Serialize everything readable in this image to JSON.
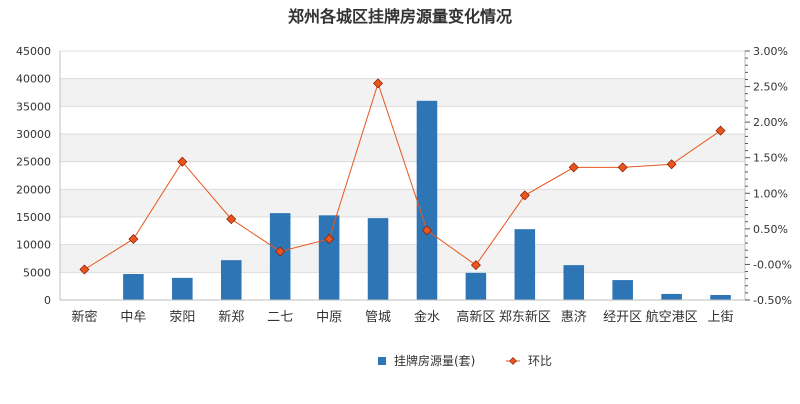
{
  "chart_data": {
    "type": "bar",
    "title": "郑州各城区挂牌房源量变化情况",
    "categories": [
      "新密",
      "中牟",
      "荥阳",
      "新郑",
      "二七",
      "中原",
      "管城",
      "金水",
      "高新区",
      "郑东新区",
      "惠济",
      "经开区",
      "航空港区",
      "上街"
    ],
    "series": [
      {
        "name": "挂牌房源量(套)",
        "type": "bar",
        "axis": "left",
        "color": "#2e75b6",
        "values": [
          0,
          4700,
          4000,
          7200,
          15700,
          15300,
          14800,
          36000,
          4900,
          12800,
          6300,
          3600,
          1100,
          900
        ]
      },
      {
        "name": "环比",
        "type": "line",
        "axis": "right",
        "color": "#e8561f",
        "marker_fill": "#e8561f",
        "values": [
          -0.0001,
          0.0048,
          0.0172,
          0.008,
          0.0028,
          0.0048,
          0.0298,
          0.0062,
          0.0006,
          0.0118,
          0.0163,
          0.0163,
          0.0168,
          0.0222
        ]
      }
    ],
    "y_left": {
      "min": 0,
      "max": 45000,
      "ticks": [
        "0",
        "5000",
        "10000",
        "15000",
        "20000",
        "25000",
        "30000",
        "35000",
        "40000",
        "45000"
      ]
    },
    "y_right": {
      "min": -0.005,
      "max": 0.035,
      "ticks": [
        "-0.50%",
        "-0.00%",
        "0.50%",
        "1.00%",
        "1.50%",
        "2.00%",
        "2.50%",
        "3.00%"
      ]
    },
    "grid": true,
    "legend_position": "bottom",
    "legend": [
      {
        "label": "挂牌房源量(套)",
        "kind": "bar"
      },
      {
        "label": "环比",
        "kind": "line"
      }
    ]
  }
}
